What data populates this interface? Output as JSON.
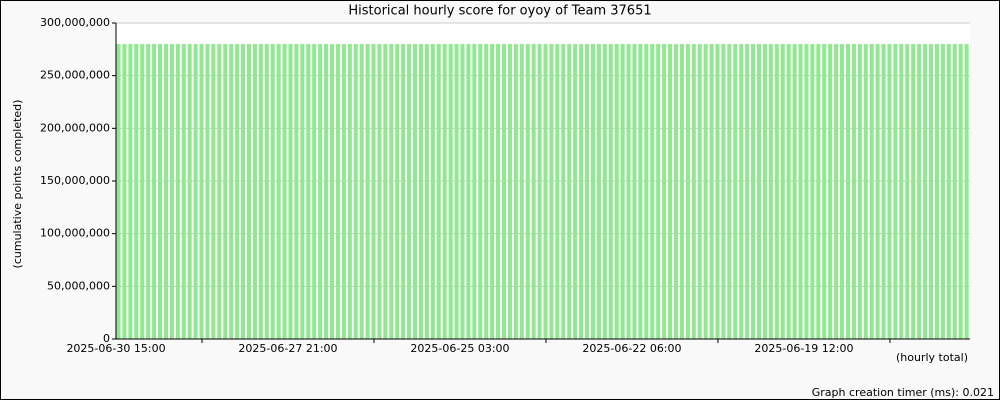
{
  "chart_data": {
    "type": "bar",
    "title": "Historical hourly score for oyoy of Team 37651",
    "ylabel": "(cumulative points completed)",
    "xlabel": "(hourly total)",
    "footer": "Graph creation timer (ms): 0.021",
    "color": "#90e890",
    "grid": true,
    "categories": [
      "2025-06-30 15:00",
      null,
      null,
      null,
      null,
      null,
      null,
      null,
      null,
      null,
      null,
      null,
      null,
      null,
      null,
      null,
      null,
      null,
      null,
      null,
      null,
      null,
      null,
      null,
      null,
      null,
      null,
      null,
      null,
      "2025-06-27 21:00",
      null,
      null,
      null,
      null,
      null,
      null,
      null,
      null,
      null,
      null,
      null,
      null,
      null,
      null,
      null,
      null,
      null,
      null,
      null,
      null,
      null,
      null,
      null,
      null,
      null,
      null,
      null,
      null,
      "2025-06-25 03:00",
      null,
      null,
      null,
      null,
      null,
      null,
      null,
      null,
      null,
      null,
      null,
      null,
      null,
      null,
      null,
      null,
      null,
      null,
      null,
      null,
      null,
      null,
      null,
      null,
      null,
      null,
      null,
      null,
      "2025-06-22 06:00",
      null,
      null,
      null,
      null,
      null,
      null,
      null,
      null,
      null,
      null,
      null,
      null,
      null,
      null,
      null,
      null,
      null,
      null,
      null,
      null,
      null,
      null,
      null,
      null,
      null,
      null,
      null,
      null,
      "2025-06-19 12:00",
      null,
      null,
      null,
      null,
      null,
      null,
      null,
      null,
      null,
      null,
      null,
      null,
      null,
      null,
      null,
      null,
      null,
      null,
      null,
      null,
      null,
      null,
      null,
      null,
      null,
      null,
      null
    ],
    "values": [
      280000000,
      280000000,
      280000000,
      280000000,
      280000000,
      280000000,
      280000000,
      280000000,
      280000000,
      280000000,
      280000000,
      280000000,
      280000000,
      280000000,
      280000000,
      280000000,
      280000000,
      280000000,
      280000000,
      280000000,
      280000000,
      280000000,
      280000000,
      280000000,
      280000000,
      280000000,
      280000000,
      280000000,
      280000000,
      280000000,
      280000000,
      280000000,
      280000000,
      280000000,
      280000000,
      280000000,
      280000000,
      280000000,
      280000000,
      280000000,
      280000000,
      280000000,
      280000000,
      280000000,
      280000000,
      280000000,
      280000000,
      280000000,
      280000000,
      280000000,
      280000000,
      280000000,
      280000000,
      280000000,
      280000000,
      280000000,
      280000000,
      280000000,
      280000000,
      280000000,
      280000000,
      280000000,
      280000000,
      280000000,
      280000000,
      280000000,
      280000000,
      280000000,
      280000000,
      280000000,
      280000000,
      280000000,
      280000000,
      280000000,
      280000000,
      280000000,
      280000000,
      280000000,
      280000000,
      280000000,
      280000000,
      280000000,
      280000000,
      280000000,
      280000000,
      280000000,
      280000000,
      280000000,
      280000000,
      280000000,
      280000000,
      280000000,
      280000000,
      280000000,
      280000000,
      280000000,
      280000000,
      280000000,
      280000000,
      280000000,
      280000000,
      280000000,
      280000000,
      280000000,
      280000000,
      280000000,
      280000000,
      280000000,
      280000000,
      280000000,
      280000000,
      280000000,
      280000000,
      280000000,
      280000000,
      280000000,
      280000000,
      280000000,
      280000000,
      280000000,
      280000000,
      280000000,
      280000000,
      280000000,
      280000000,
      280000000,
      280000000,
      280000000,
      280000000,
      280000000,
      280000000,
      280000000,
      280000000,
      280000000,
      280000000,
      280000000,
      280000000,
      280000000,
      280000000,
      280000000,
      280000000,
      280000000,
      280000000,
      280000000
    ],
    "ylim": [
      0,
      300000000
    ],
    "yticks": [
      0,
      {
        "value": 50000000,
        "label": "50,000,000"
      },
      {
        "value": 100000000,
        "label": "100,000,000"
      },
      {
        "value": 150000000,
        "label": "150,000,000"
      },
      {
        "value": 200000000,
        "label": "200,000,000"
      },
      {
        "value": 250000000,
        "label": "250,000,000"
      },
      {
        "value": 300000000,
        "label": "300,000,000"
      }
    ]
  }
}
